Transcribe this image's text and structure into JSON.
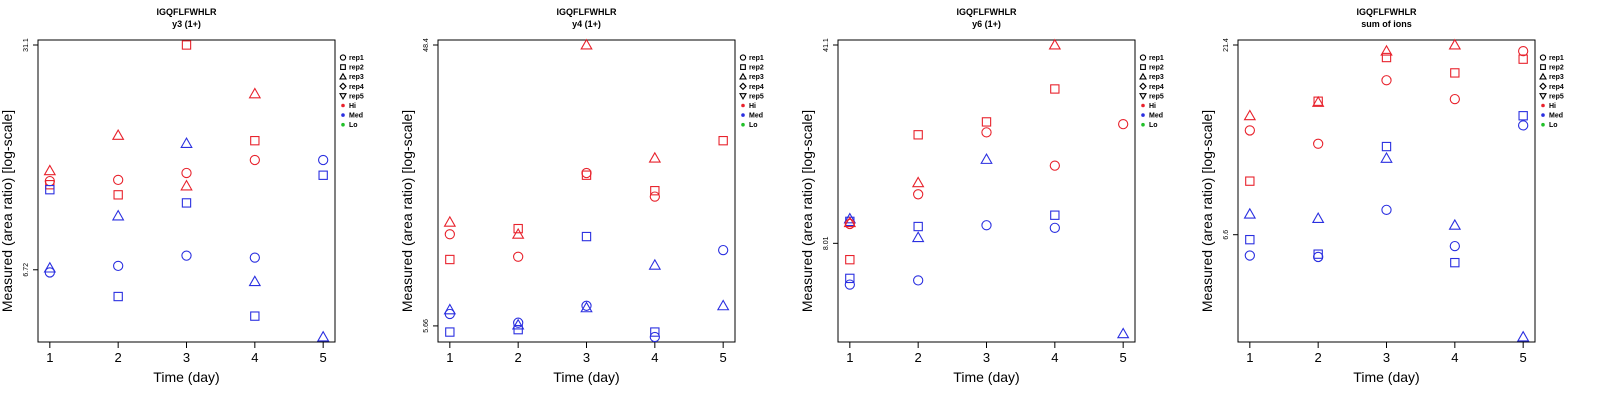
{
  "chart_data": [
    {
      "type": "scatter",
      "title": "IGQFLFWHLR",
      "subtitle": "y3 (1+)",
      "xlabel": "Time (day)",
      "ylabel": "Measured (area ratio) [log-scale]",
      "xticks": [
        "1",
        "2",
        "3",
        "4",
        "5"
      ],
      "xlim": [
        0.9,
        5.1
      ],
      "ylim": [
        4.25,
        31.1
      ],
      "log_y": true,
      "yticks": [
        {
          "v": 6.72,
          "label": "6.72"
        },
        {
          "v": 31.1,
          "label": "31.1"
        }
      ],
      "points": [
        {
          "x": 1,
          "y": 13.2,
          "shape": "rep3",
          "color": "Hi"
        },
        {
          "x": 1,
          "y": 12.3,
          "shape": "rep1",
          "color": "Hi"
        },
        {
          "x": 1,
          "y": 12.0,
          "shape": "rep2",
          "color": "Hi"
        },
        {
          "x": 1,
          "y": 11.6,
          "shape": "rep2",
          "color": "Med"
        },
        {
          "x": 1,
          "y": 6.8,
          "shape": "rep3",
          "color": "Med"
        },
        {
          "x": 1,
          "y": 6.6,
          "shape": "rep1",
          "color": "Med"
        },
        {
          "x": 2,
          "y": 16.8,
          "shape": "rep3",
          "color": "Hi"
        },
        {
          "x": 2,
          "y": 12.4,
          "shape": "rep1",
          "color": "Hi"
        },
        {
          "x": 2,
          "y": 11.2,
          "shape": "rep2",
          "color": "Hi"
        },
        {
          "x": 2,
          "y": 9.7,
          "shape": "rep3",
          "color": "Med"
        },
        {
          "x": 2,
          "y": 6.9,
          "shape": "rep1",
          "color": "Med"
        },
        {
          "x": 2,
          "y": 5.6,
          "shape": "rep2",
          "color": "Med"
        },
        {
          "x": 3,
          "y": 31.1,
          "shape": "rep2",
          "color": "Hi"
        },
        {
          "x": 3,
          "y": 13.0,
          "shape": "rep1",
          "color": "Hi"
        },
        {
          "x": 3,
          "y": 11.9,
          "shape": "rep3",
          "color": "Hi"
        },
        {
          "x": 3,
          "y": 15.9,
          "shape": "rep3",
          "color": "Med"
        },
        {
          "x": 3,
          "y": 10.6,
          "shape": "rep2",
          "color": "Med"
        },
        {
          "x": 3,
          "y": 7.4,
          "shape": "rep1",
          "color": "Med"
        },
        {
          "x": 4,
          "y": 22.3,
          "shape": "rep3",
          "color": "Hi"
        },
        {
          "x": 4,
          "y": 16.2,
          "shape": "rep2",
          "color": "Hi"
        },
        {
          "x": 4,
          "y": 14.2,
          "shape": "rep1",
          "color": "Hi"
        },
        {
          "x": 4,
          "y": 7.3,
          "shape": "rep1",
          "color": "Med"
        },
        {
          "x": 4,
          "y": 6.2,
          "shape": "rep3",
          "color": "Med"
        },
        {
          "x": 4,
          "y": 4.9,
          "shape": "rep2",
          "color": "Med"
        },
        {
          "x": 5,
          "y": 14.2,
          "shape": "rep1",
          "color": "Med"
        },
        {
          "x": 5,
          "y": 12.8,
          "shape": "rep2",
          "color": "Med"
        },
        {
          "x": 5,
          "y": 4.25,
          "shape": "rep3",
          "color": "Med"
        }
      ]
    },
    {
      "type": "scatter",
      "title": "IGQFLFWHLR",
      "subtitle": "y4 (1+)",
      "xlabel": "Time (day)",
      "ylabel": "Measured (area ratio) [log-scale]",
      "xticks": [
        "1",
        "2",
        "3",
        "4",
        "5"
      ],
      "xlim": [
        0.9,
        5.1
      ],
      "ylim": [
        5.2,
        48.4
      ],
      "log_y": true,
      "yticks": [
        {
          "v": 5.66,
          "label": "5.66"
        },
        {
          "v": 48.4,
          "label": "48.4"
        }
      ],
      "points": [
        {
          "x": 1,
          "y": 12.5,
          "shape": "rep3",
          "color": "Hi"
        },
        {
          "x": 1,
          "y": 11.4,
          "shape": "rep1",
          "color": "Hi"
        },
        {
          "x": 1,
          "y": 9.4,
          "shape": "rep2",
          "color": "Hi"
        },
        {
          "x": 1,
          "y": 6.4,
          "shape": "rep3",
          "color": "Med"
        },
        {
          "x": 1,
          "y": 6.2,
          "shape": "rep1",
          "color": "Med"
        },
        {
          "x": 1,
          "y": 5.4,
          "shape": "rep2",
          "color": "Med"
        },
        {
          "x": 2,
          "y": 11.9,
          "shape": "rep2",
          "color": "Hi"
        },
        {
          "x": 2,
          "y": 11.4,
          "shape": "rep3",
          "color": "Hi"
        },
        {
          "x": 2,
          "y": 9.6,
          "shape": "rep1",
          "color": "Hi"
        },
        {
          "x": 2,
          "y": 5.8,
          "shape": "rep1",
          "color": "Med"
        },
        {
          "x": 2,
          "y": 5.7,
          "shape": "rep3",
          "color": "Med"
        },
        {
          "x": 2,
          "y": 5.5,
          "shape": "rep2",
          "color": "Med"
        },
        {
          "x": 3,
          "y": 48.4,
          "shape": "rep3",
          "color": "Hi"
        },
        {
          "x": 3,
          "y": 18.2,
          "shape": "rep1",
          "color": "Hi"
        },
        {
          "x": 3,
          "y": 17.9,
          "shape": "rep2",
          "color": "Hi"
        },
        {
          "x": 3,
          "y": 11.2,
          "shape": "rep2",
          "color": "Med"
        },
        {
          "x": 3,
          "y": 6.6,
          "shape": "rep1",
          "color": "Med"
        },
        {
          "x": 3,
          "y": 6.5,
          "shape": "rep3",
          "color": "Med"
        },
        {
          "x": 4,
          "y": 20.4,
          "shape": "rep3",
          "color": "Hi"
        },
        {
          "x": 4,
          "y": 15.9,
          "shape": "rep2",
          "color": "Hi"
        },
        {
          "x": 4,
          "y": 15.2,
          "shape": "rep1",
          "color": "Hi"
        },
        {
          "x": 4,
          "y": 9.0,
          "shape": "rep3",
          "color": "Med"
        },
        {
          "x": 4,
          "y": 5.4,
          "shape": "rep2",
          "color": "Med"
        },
        {
          "x": 4,
          "y": 5.2,
          "shape": "rep1",
          "color": "Med"
        },
        {
          "x": 5,
          "y": 23.3,
          "shape": "rep2",
          "color": "Hi"
        },
        {
          "x": 5,
          "y": 10.1,
          "shape": "rep1",
          "color": "Med"
        },
        {
          "x": 5,
          "y": 6.6,
          "shape": "rep3",
          "color": "Med"
        }
      ]
    },
    {
      "type": "scatter",
      "title": "IGQFLFWHLR",
      "subtitle": "y6 (1+)",
      "xlabel": "Time (day)",
      "ylabel": "Measured (area ratio) [log-scale]",
      "xticks": [
        "1",
        "2",
        "3",
        "4",
        "5"
      ],
      "xlim": [
        0.9,
        5.1
      ],
      "ylim": [
        3.7,
        41.1
      ],
      "log_y": true,
      "yticks": [
        {
          "v": 8.01,
          "label": "8.01"
        },
        {
          "v": 41.1,
          "label": "41.1"
        }
      ],
      "points": [
        {
          "x": 1,
          "y": 9.8,
          "shape": "rep3",
          "color": "Med"
        },
        {
          "x": 1,
          "y": 9.6,
          "shape": "rep2",
          "color": "Med"
        },
        {
          "x": 1,
          "y": 9.5,
          "shape": "rep3",
          "color": "Hi"
        },
        {
          "x": 1,
          "y": 9.4,
          "shape": "rep1",
          "color": "Hi"
        },
        {
          "x": 1,
          "y": 7.0,
          "shape": "rep2",
          "color": "Hi"
        },
        {
          "x": 1,
          "y": 6.0,
          "shape": "rep2",
          "color": "Med"
        },
        {
          "x": 1,
          "y": 5.7,
          "shape": "rep1",
          "color": "Med"
        },
        {
          "x": 2,
          "y": 19.6,
          "shape": "rep2",
          "color": "Hi"
        },
        {
          "x": 2,
          "y": 13.2,
          "shape": "rep3",
          "color": "Hi"
        },
        {
          "x": 2,
          "y": 12.0,
          "shape": "rep1",
          "color": "Hi"
        },
        {
          "x": 2,
          "y": 9.2,
          "shape": "rep2",
          "color": "Med"
        },
        {
          "x": 2,
          "y": 8.4,
          "shape": "rep3",
          "color": "Med"
        },
        {
          "x": 2,
          "y": 5.9,
          "shape": "rep1",
          "color": "Med"
        },
        {
          "x": 3,
          "y": 21.8,
          "shape": "rep2",
          "color": "Hi"
        },
        {
          "x": 3,
          "y": 20.0,
          "shape": "rep1",
          "color": "Hi"
        },
        {
          "x": 3,
          "y": 16.0,
          "shape": "rep3",
          "color": "Med"
        },
        {
          "x": 3,
          "y": 9.3,
          "shape": "rep1",
          "color": "Med"
        },
        {
          "x": 4,
          "y": 41.1,
          "shape": "rep3",
          "color": "Hi"
        },
        {
          "x": 4,
          "y": 28.6,
          "shape": "rep2",
          "color": "Hi"
        },
        {
          "x": 4,
          "y": 15.2,
          "shape": "rep1",
          "color": "Hi"
        },
        {
          "x": 4,
          "y": 10.1,
          "shape": "rep2",
          "color": "Med"
        },
        {
          "x": 4,
          "y": 9.1,
          "shape": "rep1",
          "color": "Med"
        },
        {
          "x": 5,
          "y": 21.4,
          "shape": "rep1",
          "color": "Hi"
        },
        {
          "x": 5,
          "y": 3.8,
          "shape": "rep3",
          "color": "Med"
        }
      ]
    },
    {
      "type": "scatter",
      "title": "IGQFLFWHLR",
      "subtitle": "sum of ions",
      "xlabel": "Time (day)",
      "ylabel": "Measured (area ratio) [log-scale]",
      "xticks": [
        "1",
        "2",
        "3",
        "4",
        "5"
      ],
      "xlim": [
        0.9,
        5.1
      ],
      "ylim": [
        3.5,
        21.4
      ],
      "log_y": true,
      "yticks": [
        {
          "v": 6.6,
          "label": "6.6"
        },
        {
          "v": 21.4,
          "label": "21.4"
        }
      ],
      "points": [
        {
          "x": 1,
          "y": 13.8,
          "shape": "rep3",
          "color": "Hi"
        },
        {
          "x": 1,
          "y": 12.6,
          "shape": "rep1",
          "color": "Hi"
        },
        {
          "x": 1,
          "y": 9.2,
          "shape": "rep2",
          "color": "Hi"
        },
        {
          "x": 1,
          "y": 7.5,
          "shape": "rep3",
          "color": "Med"
        },
        {
          "x": 1,
          "y": 6.4,
          "shape": "rep2",
          "color": "Med"
        },
        {
          "x": 1,
          "y": 5.8,
          "shape": "rep1",
          "color": "Med"
        },
        {
          "x": 2,
          "y": 15.1,
          "shape": "rep2",
          "color": "Hi"
        },
        {
          "x": 2,
          "y": 15.0,
          "shape": "rep3",
          "color": "Hi"
        },
        {
          "x": 2,
          "y": 11.6,
          "shape": "rep1",
          "color": "Hi"
        },
        {
          "x": 2,
          "y": 7.3,
          "shape": "rep3",
          "color": "Med"
        },
        {
          "x": 2,
          "y": 5.85,
          "shape": "rep2",
          "color": "Med"
        },
        {
          "x": 2,
          "y": 5.75,
          "shape": "rep1",
          "color": "Med"
        },
        {
          "x": 3,
          "y": 20.6,
          "shape": "rep3",
          "color": "Hi"
        },
        {
          "x": 3,
          "y": 19.8,
          "shape": "rep2",
          "color": "Hi"
        },
        {
          "x": 3,
          "y": 17.2,
          "shape": "rep1",
          "color": "Hi"
        },
        {
          "x": 3,
          "y": 11.4,
          "shape": "rep2",
          "color": "Med"
        },
        {
          "x": 3,
          "y": 10.6,
          "shape": "rep3",
          "color": "Med"
        },
        {
          "x": 3,
          "y": 7.7,
          "shape": "rep1",
          "color": "Med"
        },
        {
          "x": 4,
          "y": 21.4,
          "shape": "rep3",
          "color": "Hi"
        },
        {
          "x": 4,
          "y": 18.0,
          "shape": "rep2",
          "color": "Hi"
        },
        {
          "x": 4,
          "y": 15.3,
          "shape": "rep1",
          "color": "Hi"
        },
        {
          "x": 4,
          "y": 7.0,
          "shape": "rep3",
          "color": "Med"
        },
        {
          "x": 4,
          "y": 6.15,
          "shape": "rep1",
          "color": "Med"
        },
        {
          "x": 4,
          "y": 5.55,
          "shape": "rep2",
          "color": "Med"
        },
        {
          "x": 5,
          "y": 20.6,
          "shape": "rep1",
          "color": "Hi"
        },
        {
          "x": 5,
          "y": 19.6,
          "shape": "rep2",
          "color": "Hi"
        },
        {
          "x": 5,
          "y": 13.8,
          "shape": "rep2",
          "color": "Med"
        },
        {
          "x": 5,
          "y": 13.0,
          "shape": "rep1",
          "color": "Med"
        },
        {
          "x": 5,
          "y": 3.5,
          "shape": "rep3",
          "color": "Med"
        }
      ]
    }
  ],
  "legend": {
    "shapes": [
      {
        "key": "rep1",
        "label": "rep1",
        "symbol": "circle"
      },
      {
        "key": "rep2",
        "label": "rep2",
        "symbol": "square"
      },
      {
        "key": "rep3",
        "label": "rep3",
        "symbol": "triangle-up"
      },
      {
        "key": "rep4",
        "label": "rep4",
        "symbol": "diamond"
      },
      {
        "key": "rep5",
        "label": "rep5",
        "symbol": "triangle-down"
      }
    ],
    "colors": [
      {
        "key": "Hi",
        "label": "Hi",
        "color": "#e8222c"
      },
      {
        "key": "Med",
        "label": "Med",
        "color": "#2a2fe0"
      },
      {
        "key": "Lo",
        "label": "Lo",
        "color": "#22c02a"
      }
    ]
  }
}
